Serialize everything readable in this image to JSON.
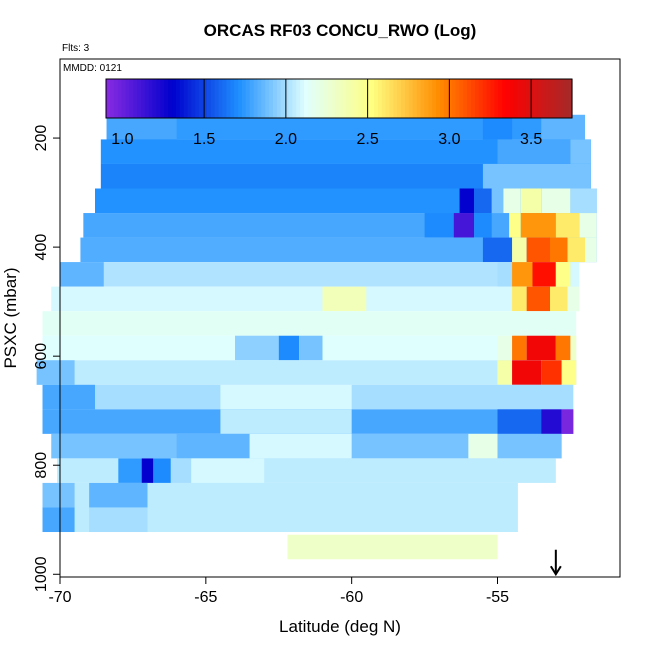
{
  "chart_data": {
    "type": "heatmap",
    "title": "ORCAS RF03 CONCU_RWO (Log)",
    "flights_note": "Flts: 3",
    "date_note": "MMDD: 0121",
    "xlabel": "Latitude (deg N)",
    "ylabel": "PSXC (mbar)",
    "xlim": [
      -70,
      -50.8
    ],
    "ylim": [
      1005,
      55
    ],
    "y_reversed": true,
    "x_ticks": [
      -70,
      -65,
      -60,
      -55
    ],
    "x_tick_labels": [
      "-70",
      "-65",
      "-60",
      "-55"
    ],
    "y_ticks": [
      200,
      400,
      600,
      800,
      1000
    ],
    "y_tick_labels": [
      "200",
      "400",
      "600",
      "800",
      "1000"
    ],
    "colorbar": {
      "range": [
        0.9,
        3.75
      ],
      "ticks": [
        1.0,
        1.5,
        2.0,
        2.5,
        3.0,
        3.5
      ],
      "tick_labels": [
        "1.0",
        "1.5",
        "2.0",
        "2.5",
        "3.0",
        "3.5"
      ],
      "colors": [
        "#8a2be2",
        "#0000cd",
        "#1e90ff",
        "#e0ffff",
        "#ffff80",
        "#ff8c00",
        "#ff0000",
        "#a52a2a"
      ]
    },
    "arrow_marker": {
      "x": -53.0,
      "y_from": 955,
      "y_to": 1000
    },
    "bin_height": 45,
    "rows": [
      {
        "p": 180,
        "x0": -68.4,
        "x1": -52.0,
        "v": 1.75,
        "patches": [
          [
            -68.4,
            -66.0,
            1.8
          ],
          [
            -55.5,
            -54.5,
            1.7
          ],
          [
            -53.5,
            -52.0,
            1.85
          ]
        ]
      },
      {
        "p": 225,
        "x0": -68.6,
        "x1": -51.8,
        "v": 1.72,
        "patches": [
          [
            -55.0,
            -52.5,
            1.8
          ],
          [
            -52.5,
            -51.8,
            1.9
          ]
        ]
      },
      {
        "p": 270,
        "x0": -68.6,
        "x1": -51.8,
        "v": 1.68,
        "patches": [
          [
            -55.5,
            -51.8,
            1.9
          ]
        ]
      },
      {
        "p": 315,
        "x0": -68.8,
        "x1": -51.6,
        "v": 1.72,
        "patches": [
          [
            -56.3,
            -55.8,
            1.3
          ],
          [
            -55.8,
            -55.2,
            1.6
          ],
          [
            -55.2,
            -54.8,
            1.9
          ],
          [
            -54.8,
            -54.2,
            2.2
          ],
          [
            -54.2,
            -53.5,
            2.4
          ],
          [
            -53.5,
            -52.5,
            2.2
          ],
          [
            -52.5,
            -51.6,
            2.0
          ]
        ]
      },
      {
        "p": 360,
        "x0": -69.2,
        "x1": -51.6,
        "v": 1.8,
        "patches": [
          [
            -57.5,
            -56.5,
            1.7
          ],
          [
            -56.5,
            -55.8,
            1.1
          ],
          [
            -55.8,
            -55.2,
            1.7
          ],
          [
            -54.6,
            -54.2,
            2.5
          ],
          [
            -54.2,
            -53.0,
            2.9
          ],
          [
            -53.0,
            -52.2,
            2.6
          ],
          [
            -52.2,
            -51.6,
            2.2
          ]
        ]
      },
      {
        "p": 405,
        "x0": -69.3,
        "x1": -51.6,
        "v": 1.82,
        "patches": [
          [
            -55.5,
            -54.5,
            1.6
          ],
          [
            -54.5,
            -54.0,
            2.4
          ],
          [
            -54.0,
            -53.2,
            3.1
          ],
          [
            -53.2,
            -52.6,
            3.0
          ],
          [
            -52.6,
            -52.0,
            2.6
          ],
          [
            -52.0,
            -51.6,
            2.2
          ]
        ]
      },
      {
        "p": 450,
        "x0": -70.0,
        "x1": -52.2,
        "v": 2.02,
        "patches": [
          [
            -70.0,
            -68.5,
            1.85
          ],
          [
            -55.0,
            -54.5,
            2.0
          ],
          [
            -54.5,
            -53.8,
            2.9
          ],
          [
            -53.8,
            -53.0,
            3.3
          ],
          [
            -53.0,
            -52.5,
            2.5
          ],
          [
            -52.5,
            -52.2,
            2.1
          ]
        ]
      },
      {
        "p": 495,
        "x0": -70.3,
        "x1": -52.2,
        "v": 2.1,
        "patches": [
          [
            -61.0,
            -59.5,
            2.35
          ],
          [
            -54.5,
            -54.0,
            2.6
          ],
          [
            -54.0,
            -53.2,
            3.1
          ],
          [
            -53.2,
            -52.6,
            2.6
          ],
          [
            -52.6,
            -52.2,
            2.2
          ]
        ]
      },
      {
        "p": 540,
        "x0": -70.6,
        "x1": -52.3,
        "v": 2.15,
        "patches": []
      },
      {
        "p": 585,
        "x0": -70.6,
        "x1": -52.3,
        "v": 2.12,
        "patches": [
          [
            -64.0,
            -62.5,
            1.95
          ],
          [
            -62.5,
            -61.8,
            1.7
          ],
          [
            -61.8,
            -61.0,
            1.9
          ],
          [
            -55.0,
            -54.5,
            2.2
          ],
          [
            -54.5,
            -54.0,
            3.0
          ],
          [
            -54.0,
            -53.0,
            3.4
          ],
          [
            -53.0,
            -52.5,
            3.0
          ],
          [
            -52.5,
            -52.3,
            2.3
          ]
        ]
      },
      {
        "p": 630,
        "x0": -70.8,
        "x1": -52.3,
        "v": 2.05,
        "patches": [
          [
            -70.8,
            -69.5,
            1.9
          ],
          [
            -55.0,
            -54.5,
            2.4
          ],
          [
            -54.5,
            -53.5,
            3.4
          ],
          [
            -53.5,
            -52.8,
            3.2
          ],
          [
            -52.8,
            -52.3,
            2.5
          ]
        ]
      },
      {
        "p": 675,
        "x0": -70.6,
        "x1": -52.4,
        "v": 2.0,
        "patches": [
          [
            -70.6,
            -68.8,
            1.8
          ],
          [
            -64.5,
            -60.0,
            2.1
          ]
        ]
      },
      {
        "p": 720,
        "x0": -70.6,
        "x1": -52.4,
        "v": 1.8,
        "patches": [
          [
            -64.5,
            -60.0,
            2.05
          ],
          [
            -55.0,
            -53.5,
            1.6
          ],
          [
            -53.5,
            -52.8,
            1.2
          ],
          [
            -52.8,
            -52.4,
            0.95
          ]
        ]
      },
      {
        "p": 765,
        "x0": -70.3,
        "x1": -52.8,
        "v": 1.9,
        "patches": [
          [
            -66.0,
            -63.5,
            1.85
          ],
          [
            -63.5,
            -60.0,
            2.1
          ],
          [
            -56.0,
            -55.0,
            2.2
          ]
        ]
      },
      {
        "p": 810,
        "x0": -70.1,
        "x1": -53.0,
        "v": 2.05,
        "patches": [
          [
            -68.0,
            -67.2,
            1.75
          ],
          [
            -67.2,
            -66.8,
            1.3
          ],
          [
            -66.8,
            -66.2,
            1.7
          ],
          [
            -66.2,
            -65.5,
            2.0
          ],
          [
            -65.5,
            -63.0,
            2.1
          ]
        ]
      },
      {
        "p": 855,
        "x0": -70.6,
        "x1": -54.3,
        "v": 2.05,
        "patches": [
          [
            -70.6,
            -69.5,
            1.9
          ],
          [
            -69.0,
            -67.0,
            1.85
          ]
        ]
      },
      {
        "p": 900,
        "x0": -70.6,
        "x1": -54.3,
        "v": 2.05,
        "patches": [
          [
            -70.6,
            -69.5,
            1.8
          ],
          [
            -69.0,
            -67.0,
            2.0
          ]
        ]
      },
      {
        "p": 950,
        "x0": -62.2,
        "x1": -55.0,
        "v": 2.3,
        "patches": []
      }
    ]
  }
}
